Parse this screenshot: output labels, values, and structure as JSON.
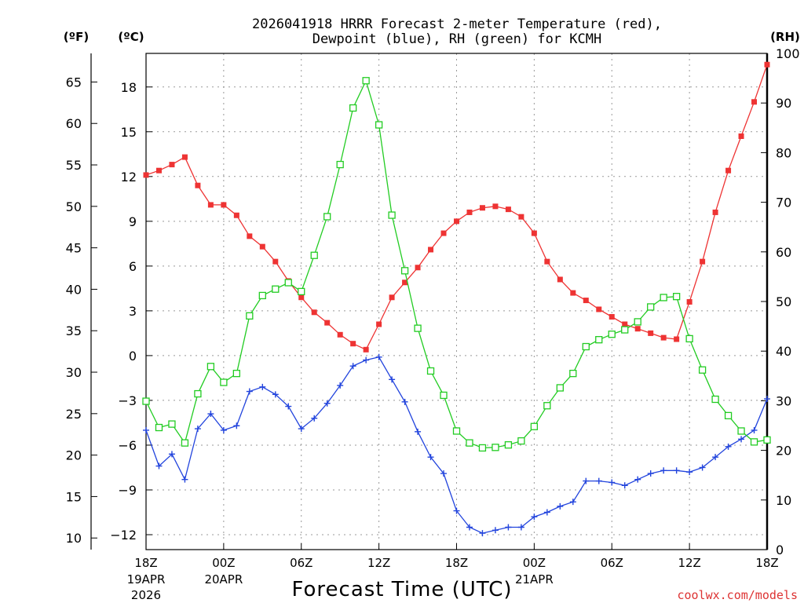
{
  "chart_data": {
    "type": "line",
    "title_line1": "2026041918 HRRR Forecast 2-meter Temperature (red),",
    "title_line2": "Dewpoint (blue), RH (green) for KCMH",
    "xlabel": "Forecast Time (UTC)",
    "watermark": "coolwx.com/models",
    "left_outer_axis_label": "(ºF)",
    "left_inner_axis_label": "(ºC)",
    "right_axis_label": "(RH)",
    "x_range_hours": [
      0,
      48
    ],
    "celsius_range": [
      -13,
      20.25
    ],
    "rh_range": [
      0,
      100
    ],
    "grid": true,
    "x_ticks": [
      {
        "h": 0,
        "l1": "18Z",
        "l2": "19APR",
        "l3": "2026"
      },
      {
        "h": 6,
        "l1": "00Z",
        "l2": "20APR",
        "l3": ""
      },
      {
        "h": 12,
        "l1": "06Z",
        "l2": "",
        "l3": ""
      },
      {
        "h": 18,
        "l1": "12Z",
        "l2": "",
        "l3": ""
      },
      {
        "h": 24,
        "l1": "18Z",
        "l2": "",
        "l3": ""
      },
      {
        "h": 30,
        "l1": "00Z",
        "l2": "21APR",
        "l3": ""
      },
      {
        "h": 36,
        "l1": "06Z",
        "l2": "",
        "l3": ""
      },
      {
        "h": 42,
        "l1": "12Z",
        "l2": "",
        "l3": ""
      },
      {
        "h": 48,
        "l1": "18Z",
        "l2": "",
        "l3": ""
      }
    ],
    "celsius_ticks": [
      -12,
      -9,
      -6,
      -3,
      0,
      3,
      6,
      9,
      12,
      15,
      18
    ],
    "fahrenheit_ticks": [
      10,
      15,
      20,
      25,
      30,
      35,
      40,
      45,
      50,
      55,
      60,
      65
    ],
    "rh_ticks": [
      0,
      10,
      20,
      30,
      40,
      50,
      60,
      70,
      80,
      90,
      100
    ],
    "series": [
      {
        "name": "2-meter Temperature",
        "units": "C",
        "color": "#ee3333",
        "marker": "filled-square",
        "values": [
          12.1,
          12.4,
          12.8,
          13.3,
          11.4,
          10.1,
          10.1,
          9.4,
          8.0,
          7.3,
          6.3,
          5.0,
          3.9,
          2.9,
          2.2,
          1.4,
          0.8,
          0.4,
          2.1,
          3.9,
          4.9,
          5.9,
          7.1,
          8.2,
          9.0,
          9.6,
          9.9,
          10.0,
          9.8,
          9.3,
          8.2,
          6.3,
          5.1,
          4.2,
          3.7,
          3.1,
          2.6,
          2.1,
          1.8,
          1.5,
          1.2,
          1.1,
          3.6,
          6.3,
          9.6,
          12.4,
          14.7,
          17.0,
          19.5
        ]
      },
      {
        "name": "Dewpoint",
        "units": "C",
        "color": "#2244dd",
        "marker": "plus",
        "values": [
          -5.0,
          -7.4,
          -6.6,
          -8.3,
          -4.9,
          -3.9,
          -5.0,
          -4.7,
          -2.4,
          -2.1,
          -2.6,
          -3.4,
          -4.9,
          -4.2,
          -3.2,
          -2.0,
          -0.7,
          -0.3,
          -0.1,
          -1.6,
          -3.1,
          -5.1,
          -6.8,
          -7.9,
          -10.4,
          -11.5,
          -11.9,
          -11.7,
          -11.5,
          -11.5,
          -10.8,
          -10.5,
          -10.1,
          -9.8,
          -8.4,
          -8.4,
          -8.5,
          -8.7,
          -8.3,
          -7.9,
          -7.7,
          -7.7,
          -7.8,
          -7.5,
          -6.8,
          -6.1,
          -5.6,
          -5.0,
          -2.9
        ]
      },
      {
        "name": "RH",
        "units": "%",
        "color": "#22cc22",
        "marker": "open-square",
        "values": [
          29.9,
          24.6,
          25.3,
          21.5,
          31.4,
          36.9,
          33.7,
          35.5,
          47.1,
          51.2,
          52.5,
          53.8,
          52.0,
          59.3,
          67.1,
          77.6,
          89.0,
          94.5,
          85.6,
          67.4,
          56.2,
          44.6,
          36.0,
          31.1,
          23.9,
          21.5,
          20.5,
          20.6,
          21.1,
          21.9,
          24.8,
          29.0,
          32.6,
          35.5,
          40.9,
          42.3,
          43.4,
          44.3,
          45.9,
          48.9,
          50.8,
          51.0,
          42.5,
          36.2,
          30.3,
          27.0,
          23.9,
          21.7,
          22.1
        ]
      }
    ]
  }
}
